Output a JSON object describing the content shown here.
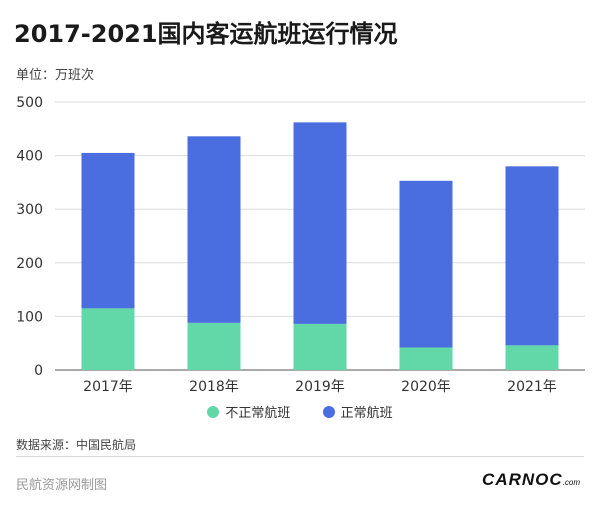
{
  "unit_label": "单位：万班次",
  "source_label": "数据来源：中国民航局",
  "footer": {
    "left_text": "民航资源网制图",
    "brand": "CARNOC",
    "brand_suffix": ".com"
  },
  "colors": {
    "irregular": "#62d8a8",
    "regular": "#4a6ee0",
    "grid": "#dddddd",
    "axis": "#555555"
  },
  "chart_data": {
    "type": "bar",
    "stacked": true,
    "title": "2017-2021国内客运航班运行情况",
    "xlabel": "",
    "ylabel": "",
    "ylim": [
      0,
      500
    ],
    "yticks": [
      0,
      100,
      200,
      300,
      400,
      500
    ],
    "categories": [
      "2017年",
      "2018年",
      "2019年",
      "2020年",
      "2021年"
    ],
    "series": [
      {
        "name": "不正常航班",
        "color": "#62d8a8",
        "values": [
          115,
          88,
          86,
          42,
          46
        ]
      },
      {
        "name": "正常航班",
        "color": "#4a6ee0",
        "values": [
          290,
          348,
          376,
          311,
          334
        ]
      }
    ],
    "grid": true,
    "legend": "bottom-center"
  }
}
